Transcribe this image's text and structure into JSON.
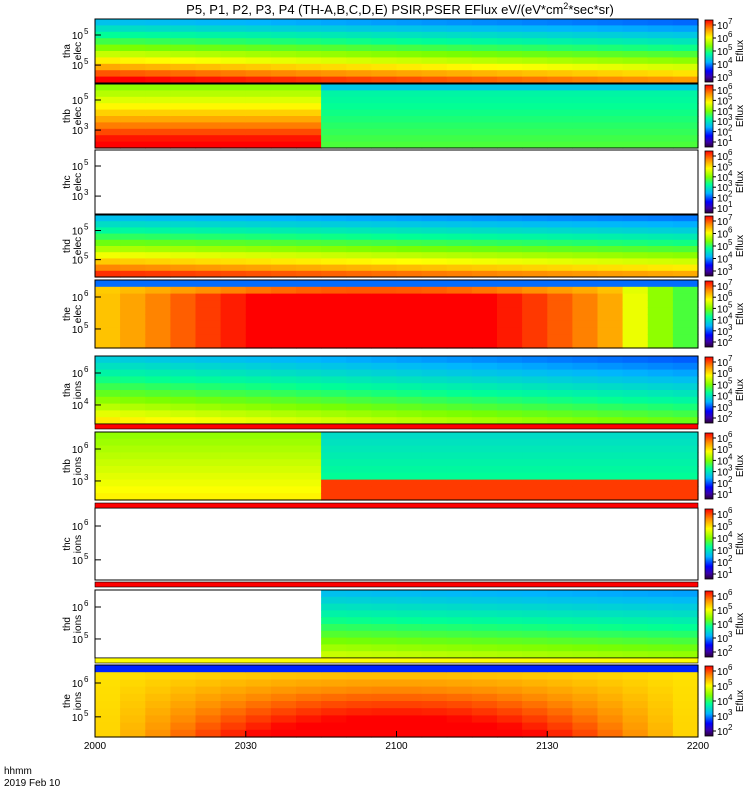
{
  "chart_data": {
    "type": "heatmap",
    "title": "P5, P1, P2, P3, P4 (TH-A,B,C,D,E) PSIR,PSER EFlux eV/(eV*cm",
    "title_sup1": "2",
    "title_tail": "*sec*sr)",
    "xlabel_line1": "hhmm",
    "xlabel_line2": "2019 Feb 10",
    "x_ticks": [
      "2000",
      "2030",
      "2100",
      "2130",
      "2200"
    ],
    "colorbar_label": "Eflux",
    "panels": [
      {
        "label1": "tha",
        "label2": "elec",
        "yticks": [
          "10",
          "10"
        ],
        "yexp": [
          "5",
          "5"
        ],
        "cbar_ticks": [
          "10",
          "10",
          "10",
          "10",
          "10"
        ],
        "cbar_exp": [
          "7",
          "6",
          "5",
          "4",
          "3"
        ],
        "present": true
      },
      {
        "label1": "thb",
        "label2": "elec",
        "yticks": [
          "10",
          "10"
        ],
        "yexp": [
          "5",
          "3"
        ],
        "cbar_ticks": [
          "10",
          "10",
          "10",
          "10",
          "10",
          "10"
        ],
        "cbar_exp": [
          "6",
          "5",
          "4",
          "3",
          "2",
          "1"
        ],
        "present": true
      },
      {
        "label1": "thc",
        "label2": "elec",
        "yticks": [
          "10",
          "10"
        ],
        "yexp": [
          "5",
          "3"
        ],
        "cbar_ticks": [
          "10",
          "10",
          "10",
          "10",
          "10",
          "10"
        ],
        "cbar_exp": [
          "6",
          "5",
          "4",
          "3",
          "2",
          "1"
        ],
        "present": false
      },
      {
        "label1": "thd",
        "label2": "elec",
        "yticks": [
          "10",
          "10"
        ],
        "yexp": [
          "5",
          "5"
        ],
        "cbar_ticks": [
          "10",
          "10",
          "10",
          "10",
          "10"
        ],
        "cbar_exp": [
          "7",
          "6",
          "5",
          "4",
          "3"
        ],
        "present": true
      },
      {
        "label1": "the",
        "label2": "elec",
        "yticks": [
          "10",
          "10"
        ],
        "yexp": [
          "6",
          "5"
        ],
        "cbar_ticks": [
          "10",
          "10",
          "10",
          "10",
          "10",
          "10"
        ],
        "cbar_exp": [
          "7",
          "6",
          "5",
          "4",
          "3",
          "2"
        ],
        "present": true
      },
      {
        "label1": "tha",
        "label2": "ions",
        "yticks": [
          "10",
          "10"
        ],
        "yexp": [
          "6",
          "4"
        ],
        "cbar_ticks": [
          "10",
          "10",
          "10",
          "10",
          "10",
          "10"
        ],
        "cbar_exp": [
          "7",
          "6",
          "5",
          "4",
          "3",
          "2"
        ],
        "present": true
      },
      {
        "label1": "thb",
        "label2": "ions",
        "yticks": [
          "10",
          "10"
        ],
        "yexp": [
          "6",
          "3"
        ],
        "cbar_ticks": [
          "10",
          "10",
          "10",
          "10",
          "10",
          "10"
        ],
        "cbar_exp": [
          "6",
          "5",
          "4",
          "3",
          "2",
          "1"
        ],
        "present": true
      },
      {
        "label1": "thc",
        "label2": "ions",
        "yticks": [
          "10",
          "10"
        ],
        "yexp": [
          "6",
          "5"
        ],
        "cbar_ticks": [
          "10",
          "10",
          "10",
          "10",
          "10",
          "10"
        ],
        "cbar_exp": [
          "6",
          "5",
          "4",
          "3",
          "2",
          "1"
        ],
        "present": false
      },
      {
        "label1": "thd",
        "label2": "ions",
        "yticks": [
          "10",
          "10"
        ],
        "yexp": [
          "6",
          "5"
        ],
        "cbar_ticks": [
          "10",
          "10",
          "10",
          "10",
          "10"
        ],
        "cbar_exp": [
          "6",
          "5",
          "4",
          "3",
          "2"
        ],
        "present": true
      },
      {
        "label1": "the",
        "label2": "ions",
        "yticks": [
          "10",
          "10"
        ],
        "yexp": [
          "6",
          "5"
        ],
        "cbar_ticks": [
          "10",
          "10",
          "10",
          "10",
          "10"
        ],
        "cbar_exp": [
          "6",
          "5",
          "4",
          "3",
          "2"
        ],
        "present": true
      }
    ]
  }
}
